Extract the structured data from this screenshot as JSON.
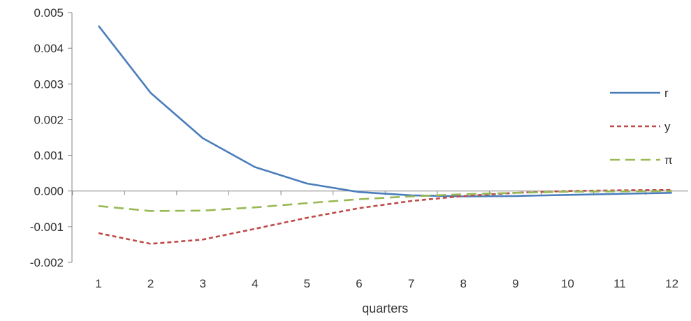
{
  "chart_data": {
    "type": "line",
    "title": "",
    "xlabel": "quarters",
    "ylabel": "",
    "categories": [
      "1",
      "2",
      "3",
      "4",
      "5",
      "6",
      "7",
      "8",
      "9",
      "10",
      "11",
      "12"
    ],
    "ylim": [
      -0.002,
      0.005
    ],
    "y_ticks": [
      "0.005",
      "0.004",
      "0.003",
      "0.002",
      "0.001",
      "0.000",
      "-0.001",
      "-0.002"
    ],
    "y_tick_values": [
      0.005,
      0.004,
      0.003,
      0.002,
      0.001,
      0.0,
      -0.001,
      -0.002
    ],
    "grid": false,
    "legend_position": "right",
    "series": [
      {
        "name": "r",
        "color": "#4a7ebb",
        "dash": "solid",
        "values": [
          0.00463,
          0.00275,
          0.00148,
          0.00067,
          0.00021,
          -3e-05,
          -0.00012,
          -0.00015,
          -0.00014,
          -0.00011,
          -8e-05,
          -5e-05
        ]
      },
      {
        "name": "y",
        "color": "#be4b48",
        "dash": "short-dash",
        "values": [
          -0.00118,
          -0.00148,
          -0.00136,
          -0.00106,
          -0.00075,
          -0.00048,
          -0.00028,
          -0.00014,
          -5e-05,
          0.0,
          2e-05,
          3e-05
        ]
      },
      {
        "name": "π",
        "color": "#98b954",
        "dash": "long-dash",
        "values": [
          -0.00042,
          -0.00056,
          -0.00055,
          -0.00046,
          -0.00034,
          -0.00023,
          -0.00015,
          -9e-05,
          -5e-05,
          -2e-05,
          -1e-05,
          0.0
        ]
      }
    ]
  }
}
